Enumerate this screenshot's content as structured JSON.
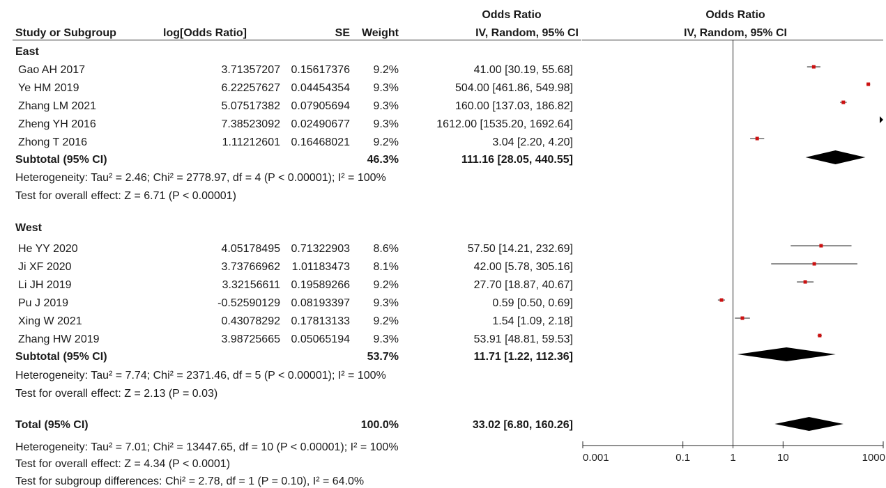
{
  "headers": {
    "study": "Study or Subgroup",
    "logor": "log[Odds Ratio]",
    "se": "SE",
    "weight": "Weight",
    "ci_top": "Odds Ratio",
    "ci_sub": "IV, Random, 95% CI",
    "plot_top": "Odds Ratio",
    "plot_sub": "IV, Random, 95% CI"
  },
  "groups": [
    {
      "name": "East",
      "studies": [
        {
          "study": "Gao AH 2017",
          "logor": "3.71357207",
          "se": "0.15617376",
          "weight": "9.2%",
          "ci": "41.00 [30.19, 55.68]"
        },
        {
          "study": "Ye HM 2019",
          "logor": "6.22257627",
          "se": "0.04454354",
          "weight": "9.3%",
          "ci": "504.00 [461.86, 549.98]"
        },
        {
          "study": "Zhang LM 2021",
          "logor": "5.07517382",
          "se": "0.07905694",
          "weight": "9.3%",
          "ci": "160.00 [137.03, 186.82]"
        },
        {
          "study": "Zheng YH 2016",
          "logor": "7.38523092",
          "se": "0.02490677",
          "weight": "9.3%",
          "ci": "1612.00 [1535.20, 1692.64]"
        },
        {
          "study": "Zhong T 2016",
          "logor": "1.11212601",
          "se": "0.16468021",
          "weight": "9.2%",
          "ci": "3.04 [2.20, 4.20]"
        }
      ],
      "subtotal": {
        "label": "Subtotal (95% CI)",
        "weight": "46.3%",
        "ci": "111.16 [28.05, 440.55]"
      },
      "heterogeneity": "Heterogeneity: Tau² = 2.46; Chi² = 2778.97, df = 4 (P < 0.00001); I² = 100%",
      "overall": "Test for overall effect: Z = 6.71 (P < 0.00001)"
    },
    {
      "name": "West",
      "studies": [
        {
          "study": "He YY 2020",
          "logor": "4.05178495",
          "se": "0.71322903",
          "weight": "8.6%",
          "ci": "57.50 [14.21, 232.69]"
        },
        {
          "study": "Ji XF 2020",
          "logor": "3.73766962",
          "se": "1.01183473",
          "weight": "8.1%",
          "ci": "42.00 [5.78, 305.16]"
        },
        {
          "study": "Li JH 2019",
          "logor": "3.32156611",
          "se": "0.19589266",
          "weight": "9.2%",
          "ci": "27.70 [18.87, 40.67]"
        },
        {
          "study": "Pu J 2019",
          "logor": "-0.52590129",
          "se": "0.08193397",
          "weight": "9.3%",
          "ci": "0.59 [0.50, 0.69]"
        },
        {
          "study": "Xing W 2021",
          "logor": "0.43078292",
          "se": "0.17813133",
          "weight": "9.2%",
          "ci": "1.54 [1.09, 2.18]"
        },
        {
          "study": "Zhang HW 2019",
          "logor": "3.98725665",
          "se": "0.05065194",
          "weight": "9.3%",
          "ci": "53.91 [48.81, 59.53]"
        }
      ],
      "subtotal": {
        "label": "Subtotal (95% CI)",
        "weight": "53.7%",
        "ci": "11.71 [1.22, 112.36]"
      },
      "heterogeneity": "Heterogeneity: Tau² = 7.74; Chi² = 2371.46, df = 5 (P < 0.00001); I² = 100%",
      "overall": "Test for overall effect: Z = 2.13 (P = 0.03)"
    }
  ],
  "total": {
    "label": "Total (95% CI)",
    "weight": "100.0%",
    "ci": "33.02 [6.80, 160.26]",
    "heterogeneity": "Heterogeneity: Tau² = 7.01; Chi² = 13447.65, df = 10 (P < 0.00001); I² = 100%",
    "overall": "Test for overall effect: Z = 4.34 (P < 0.0001)",
    "subgroup": "Test for subgroup differences: Chi² = 2.78, df = 1 (P = 0.10), I² = 64.0%"
  },
  "chart_data": {
    "type": "forest",
    "scale": "log",
    "xlim": [
      0.001,
      1000
    ],
    "ticks": [
      "0.001",
      "0.1",
      "1",
      "10",
      "1000"
    ],
    "tick_values": [
      0.001,
      0.1,
      1,
      10,
      1000
    ],
    "null_line": 1,
    "marker_color": "#cc1111",
    "studies": [
      {
        "study": "Gao AH 2017",
        "or": 41.0,
        "lo": 30.19,
        "hi": 55.68
      },
      {
        "study": "Ye HM 2019",
        "or": 504.0,
        "lo": 461.86,
        "hi": 549.98
      },
      {
        "study": "Zhang LM 2021",
        "or": 160.0,
        "lo": 137.03,
        "hi": 186.82
      },
      {
        "study": "Zheng YH 2016",
        "or": 1612.0,
        "lo": 1535.2,
        "hi": 1692.64
      },
      {
        "study": "Zhong T 2016",
        "or": 3.04,
        "lo": 2.2,
        "hi": 4.2
      },
      {
        "study": "He YY 2020",
        "or": 57.5,
        "lo": 14.21,
        "hi": 232.69
      },
      {
        "study": "Ji XF 2020",
        "or": 42.0,
        "lo": 5.78,
        "hi": 305.16
      },
      {
        "study": "Li JH 2019",
        "or": 27.7,
        "lo": 18.87,
        "hi": 40.67
      },
      {
        "study": "Pu J 2019",
        "or": 0.59,
        "lo": 0.5,
        "hi": 0.69
      },
      {
        "study": "Xing W 2021",
        "or": 1.54,
        "lo": 1.09,
        "hi": 2.18
      },
      {
        "study": "Zhang HW 2019",
        "or": 53.91,
        "lo": 48.81,
        "hi": 59.53
      }
    ],
    "diamonds": [
      {
        "label": "Subtotal East",
        "or": 111.16,
        "lo": 28.05,
        "hi": 440.55
      },
      {
        "label": "Subtotal West",
        "or": 11.71,
        "lo": 1.22,
        "hi": 112.36
      },
      {
        "label": "Total",
        "or": 33.02,
        "lo": 6.8,
        "hi": 160.26
      }
    ]
  }
}
